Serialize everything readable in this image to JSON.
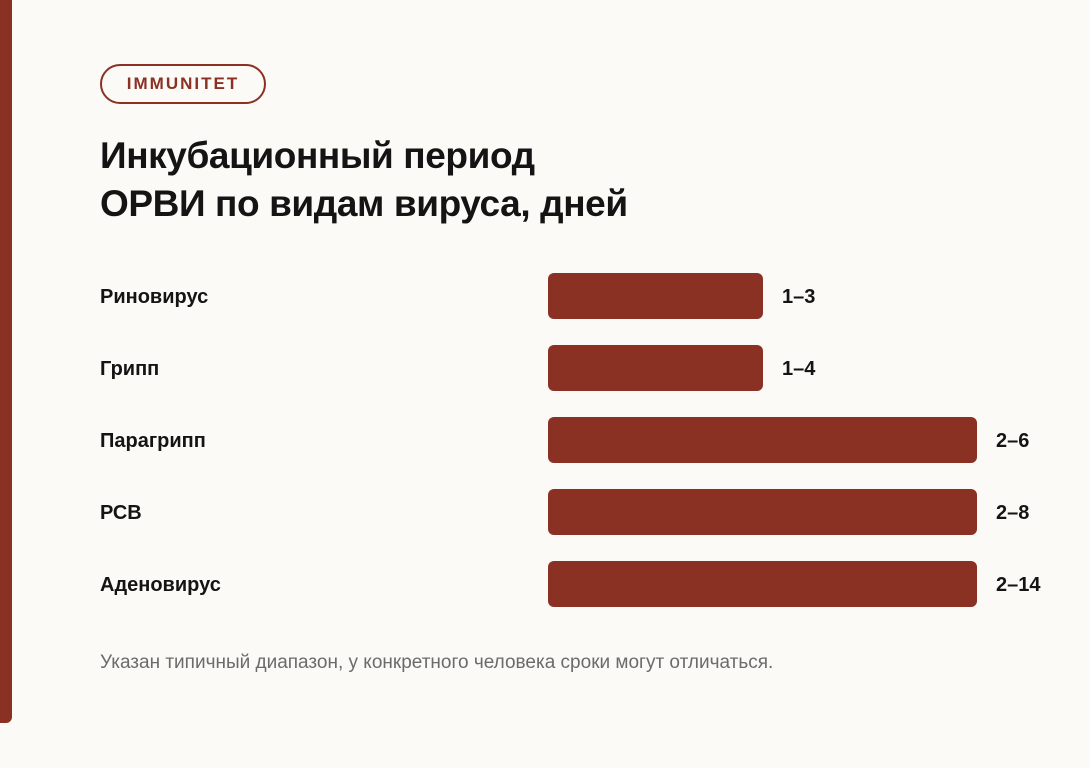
{
  "badge": "IMMUNITET",
  "title_lines": [
    "Инкубационный период",
    "ОРВИ по видам вируса, дней"
  ],
  "note": "Указан типичный диапазон, у конкретного человека сроки могут отличаться.",
  "colors": {
    "accent": "#8b3124",
    "background": "#fbfaf6",
    "text": "#141414",
    "muted": "#6b6b6b"
  },
  "chart_data": {
    "type": "bar",
    "orientation": "horizontal",
    "categories": [
      "Риновирус",
      "Грипп",
      "Парагрипп",
      "РСВ",
      "Аденовирус"
    ],
    "values": [
      1,
      1,
      2,
      2,
      2
    ],
    "ranges": [
      [
        1,
        3
      ],
      [
        1,
        4
      ],
      [
        2,
        6
      ],
      [
        2,
        8
      ],
      [
        2,
        14
      ]
    ],
    "data_labels": [
      "1–3",
      "1–4",
      "2–6",
      "2–8",
      "2–14"
    ],
    "grid": false,
    "legend": "none",
    "color": "#8b3124"
  }
}
